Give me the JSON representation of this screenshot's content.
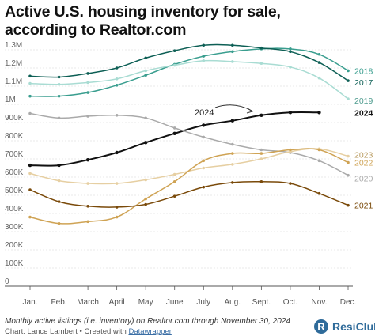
{
  "title": "Active U.S. housing inventory for sale, according to Realtor.com",
  "footer": {
    "note": "Monthly active listings (i.e. inventory) on Realtor.com through November 30, 2024",
    "credit_prefix": "Chart: Lance Lambert • Created with ",
    "credit_tool": "Datawrapper"
  },
  "brand": {
    "name": "ResiClub",
    "logo_letter": "R"
  },
  "chart_data": {
    "type": "line",
    "title": "Active U.S. housing inventory for sale, according to Realtor.com",
    "categories": [
      "Jan.",
      "Feb.",
      "March",
      "April",
      "May",
      "June",
      "July",
      "Aug.",
      "Sept.",
      "Oct.",
      "Nov.",
      "Dec."
    ],
    "ylim": [
      0,
      1300000
    ],
    "y_ticks": [
      0,
      100000,
      200000,
      300000,
      400000,
      500000,
      600000,
      700000,
      800000,
      900000,
      1000000,
      1100000,
      1200000,
      1300000
    ],
    "y_tick_labels": [
      "0",
      "100K",
      "200K",
      "300K",
      "400K",
      "500K",
      "600K",
      "700K",
      "800K",
      "900K",
      "1M",
      "1.1M",
      "1.2M",
      "1.3M"
    ],
    "grid": true,
    "annotation": "2024",
    "series": [
      {
        "name": "2018",
        "color": "#3a9e8f",
        "width": 1.5,
        "values": [
          1045000,
          1045000,
          1065000,
          1105000,
          1160000,
          1220000,
          1265000,
          1290000,
          1305000,
          1305000,
          1275000,
          1185000
        ]
      },
      {
        "name": "2017",
        "color": "#0d5f55",
        "width": 1.5,
        "values": [
          1155000,
          1150000,
          1170000,
          1200000,
          1255000,
          1295000,
          1325000,
          1325000,
          1310000,
          1290000,
          1230000,
          1130000
        ]
      },
      {
        "name": "2019",
        "color": "#a9dcd3",
        "width": 1.5,
        "values": [
          1115000,
          1110000,
          1120000,
          1140000,
          1185000,
          1215000,
          1240000,
          1235000,
          1225000,
          1205000,
          1145000,
          1030000
        ]
      },
      {
        "name": "2024",
        "color": "#111111",
        "width": 2,
        "values": [
          665000,
          665000,
          695000,
          735000,
          790000,
          840000,
          885000,
          910000,
          940000,
          955000,
          955000,
          null
        ]
      },
      {
        "name": "2020",
        "color": "#aaaaaa",
        "width": 1.5,
        "values": [
          950000,
          925000,
          935000,
          940000,
          925000,
          870000,
          820000,
          780000,
          750000,
          735000,
          690000,
          610000
        ]
      },
      {
        "name": "2023",
        "color": "#e6cfa2",
        "width": 1.5,
        "values": [
          620000,
          580000,
          565000,
          565000,
          585000,
          615000,
          650000,
          670000,
          700000,
          740000,
          755000,
          715000
        ]
      },
      {
        "name": "2022",
        "color": "#cfa354",
        "width": 1.5,
        "values": [
          380000,
          345000,
          355000,
          380000,
          480000,
          575000,
          690000,
          730000,
          730000,
          750000,
          750000,
          680000
        ]
      },
      {
        "name": "2021",
        "color": "#7a4a0a",
        "width": 1.5,
        "values": [
          530000,
          465000,
          440000,
          435000,
          450000,
          495000,
          545000,
          570000,
          575000,
          565000,
          510000,
          445000
        ]
      }
    ]
  }
}
